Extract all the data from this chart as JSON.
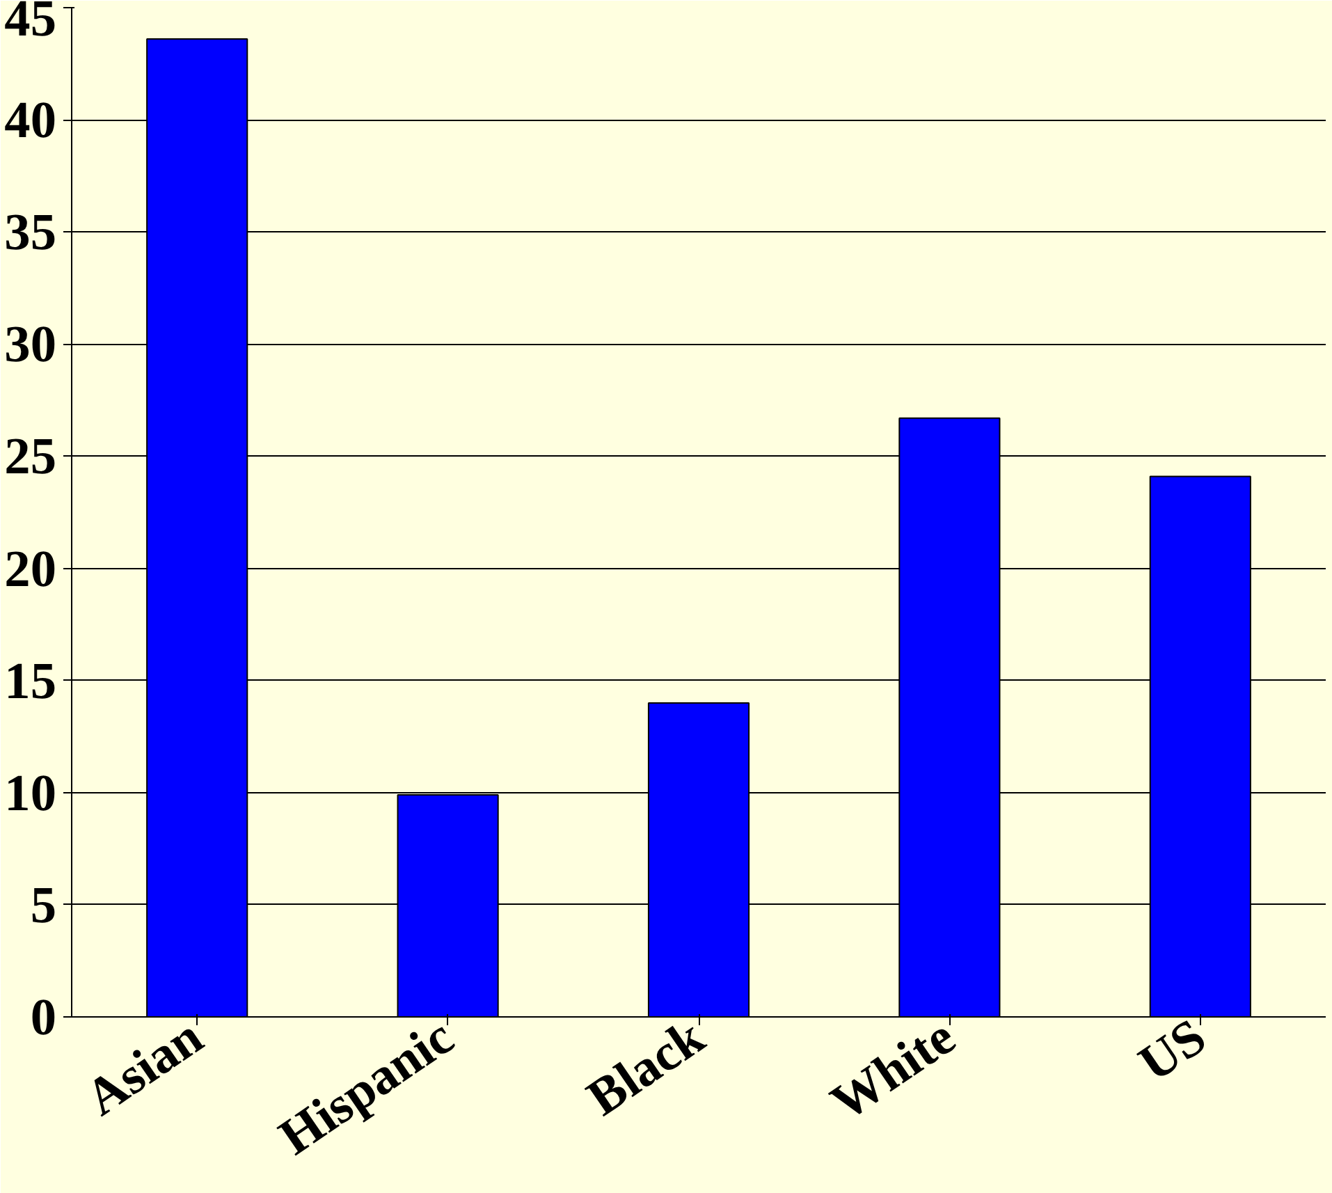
{
  "chart_data": {
    "type": "bar",
    "categories": [
      "Asian",
      "Hispanic",
      "Black",
      "White",
      "US"
    ],
    "values": [
      43.6,
      9.9,
      14,
      26.7,
      24.1
    ],
    "color": "#0000ff",
    "ylim": [
      0,
      45
    ],
    "yticks": [
      0,
      5,
      10,
      15,
      20,
      25,
      30,
      35,
      40,
      45
    ],
    "grid": "y"
  }
}
